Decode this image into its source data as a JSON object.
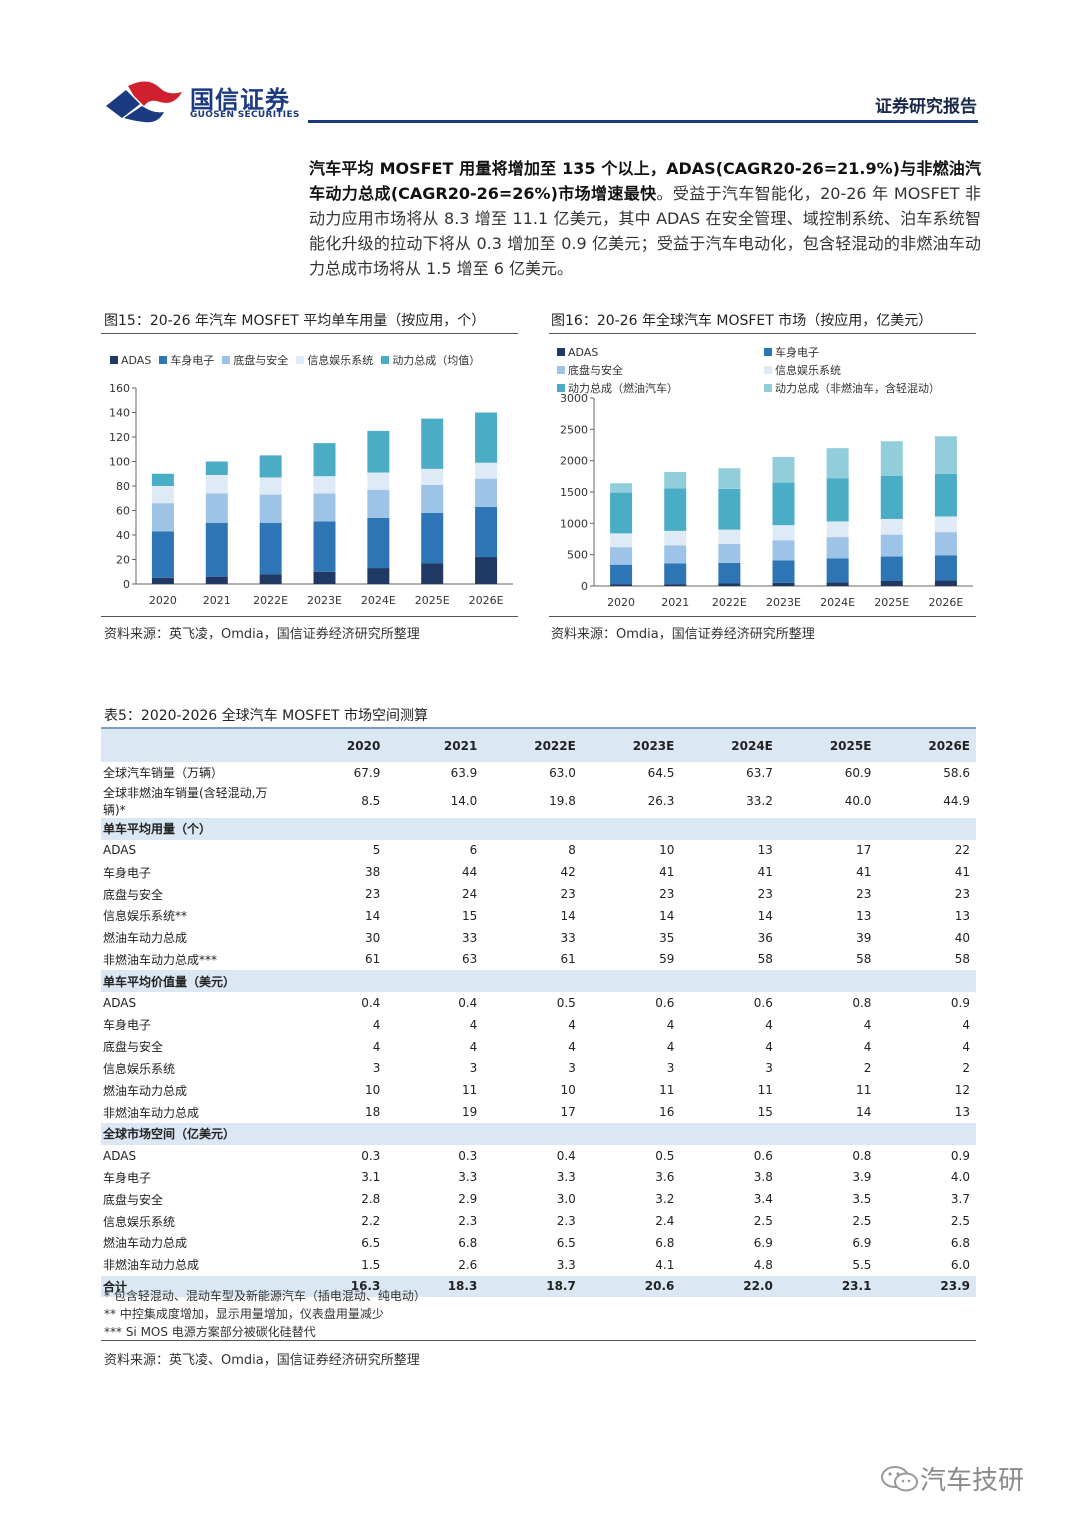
{
  "header": {
    "brand_cn": "国信证券",
    "brand_en": "GUOSEN SECURITIES",
    "report_type": "证券研究报告"
  },
  "paragraph": {
    "bold_lead": "汽车平均 MOSFET 用量将增加至 135 个以上，ADAS(CAGR20-26=21.9%)与非燃油汽车动力总成(CAGR20-26=26%)市场增速最快",
    "body": "。受益于汽车智能化，20-26 年 MOSFET 非动力应用市场将从 8.3 增至 11.1 亿美元，其中 ADAS 在安全管理、域控制系统、泊车系统智能化升级的拉动下将从 0.3 增加至 0.9 亿美元；受益于汽车电动化，包含轻混动的非燃油车动力总成市场将从 1.5 增至 6 亿美元。"
  },
  "fig15": {
    "caption": "图15：20-26 年汽车 MOSFET 平均单车用量（按应用，个）",
    "source": "资料来源：英飞凌，Omdia，国信证券经济研究所整理",
    "legend": [
      "ADAS",
      "车身电子",
      "底盘与安全",
      "信息娱乐系统",
      "动力总成（均值）"
    ]
  },
  "fig16": {
    "caption": "图16：20-26 年全球汽车 MOSFET 市场（按应用，亿美元）",
    "source": "资料来源：Omdia，国信证券经济研究所整理",
    "legend": [
      "ADAS",
      "车身电子",
      "底盘与安全",
      "信息娱乐系统",
      "动力总成（燃油汽车）",
      "动力总成（非燃油车，含轻混动）"
    ]
  },
  "colors": {
    "adas": "#1f3864",
    "body": "#2e75b6",
    "chassis": "#9dc3e6",
    "infotainment": "#deebf7",
    "power_avg": "#4bacc6",
    "power_ice": "#4bacc6",
    "power_nev": "#92cddc",
    "brand": "#1b3a80",
    "logo_red": "#d0202e",
    "table_band": "#dbe8f4"
  },
  "chart_data": [
    {
      "type": "bar",
      "stacked": true,
      "title": "图15：20-26 年汽车 MOSFET 平均单车用量（按应用，个）",
      "categories": [
        "2020",
        "2021",
        "2022E",
        "2023E",
        "2024E",
        "2025E",
        "2026E"
      ],
      "ylim": [
        0,
        160
      ],
      "yticks": [
        0,
        20,
        40,
        60,
        80,
        100,
        120,
        140,
        160
      ],
      "grid": false,
      "legend_position": "top",
      "series": [
        {
          "name": "ADAS",
          "color_key": "adas",
          "values": [
            5,
            6,
            8,
            10,
            13,
            17,
            22
          ]
        },
        {
          "name": "车身电子",
          "color_key": "body",
          "values": [
            38,
            44,
            42,
            41,
            41,
            41,
            41
          ]
        },
        {
          "name": "底盘与安全",
          "color_key": "chassis",
          "values": [
            23,
            24,
            23,
            23,
            23,
            23,
            23
          ]
        },
        {
          "name": "信息娱乐系统",
          "color_key": "infotainment",
          "values": [
            14,
            15,
            14,
            14,
            14,
            13,
            13
          ]
        },
        {
          "name": "动力总成（均值）",
          "color_key": "power_avg",
          "values": [
            10,
            11,
            18,
            27,
            34,
            41,
            41
          ]
        }
      ]
    },
    {
      "type": "bar",
      "stacked": true,
      "title": "图16：20-26 年全球汽车 MOSFET 市场（按应用，亿美元）",
      "categories": [
        "2020",
        "2021",
        "2022E",
        "2023E",
        "2024E",
        "2025E",
        "2026E"
      ],
      "ylim": [
        0,
        3000
      ],
      "yticks": [
        0,
        500,
        1000,
        1500,
        2000,
        2500,
        3000
      ],
      "grid": false,
      "legend_position": "top",
      "series": [
        {
          "name": "ADAS",
          "color_key": "adas",
          "values": [
            30,
            30,
            40,
            50,
            60,
            80,
            90
          ]
        },
        {
          "name": "车身电子",
          "color_key": "body",
          "values": [
            310,
            330,
            330,
            360,
            380,
            390,
            400
          ]
        },
        {
          "name": "底盘与安全",
          "color_key": "chassis",
          "values": [
            280,
            290,
            300,
            320,
            340,
            350,
            370
          ]
        },
        {
          "name": "信息娱乐系统",
          "color_key": "infotainment",
          "values": [
            220,
            230,
            230,
            240,
            250,
            250,
            250
          ]
        },
        {
          "name": "动力总成（燃油汽车）",
          "color_key": "power_ice",
          "values": [
            650,
            680,
            650,
            680,
            690,
            690,
            680
          ]
        },
        {
          "name": "动力总成（非燃油车，含轻混动）",
          "color_key": "power_nev",
          "values": [
            150,
            260,
            330,
            410,
            480,
            550,
            600
          ]
        }
      ]
    }
  ],
  "table": {
    "caption": "表5：2020-2026 全球汽车 MOSFET 市场空间测算",
    "headers": [
      "",
      "2020",
      "2021",
      "2022E",
      "2023E",
      "2024E",
      "2025E",
      "2026E"
    ],
    "rows": [
      {
        "kind": "data",
        "cells": [
          "全球汽车销量（万辆）",
          "67.9",
          "63.9",
          "63.0",
          "64.5",
          "63.7",
          "60.9",
          "58.6"
        ]
      },
      {
        "kind": "data",
        "cells": [
          "全球非燃油车销量(含轻混动,万辆)*",
          "8.5",
          "14.0",
          "19.8",
          "26.3",
          "33.2",
          "40.0",
          "44.9"
        ]
      },
      {
        "kind": "sec",
        "cells": [
          "单车平均用量（个）",
          "",
          "",
          "",
          "",
          "",
          "",
          ""
        ]
      },
      {
        "kind": "data",
        "cells": [
          "ADAS",
          "5",
          "6",
          "8",
          "10",
          "13",
          "17",
          "22"
        ]
      },
      {
        "kind": "data",
        "cells": [
          "车身电子",
          "38",
          "44",
          "42",
          "41",
          "41",
          "41",
          "41"
        ]
      },
      {
        "kind": "data",
        "cells": [
          "底盘与安全",
          "23",
          "24",
          "23",
          "23",
          "23",
          "23",
          "23"
        ]
      },
      {
        "kind": "data",
        "cells": [
          "信息娱乐系统**",
          "14",
          "15",
          "14",
          "14",
          "14",
          "13",
          "13"
        ]
      },
      {
        "kind": "data",
        "cells": [
          "燃油车动力总成",
          "30",
          "33",
          "33",
          "35",
          "36",
          "39",
          "40"
        ]
      },
      {
        "kind": "data",
        "cells": [
          "非燃油车动力总成***",
          "61",
          "63",
          "61",
          "59",
          "58",
          "58",
          "58"
        ]
      },
      {
        "kind": "sec",
        "cells": [
          "单车平均价值量（美元）",
          "",
          "",
          "",
          "",
          "",
          "",
          ""
        ]
      },
      {
        "kind": "data",
        "cells": [
          "ADAS",
          "0.4",
          "0.4",
          "0.5",
          "0.6",
          "0.6",
          "0.8",
          "0.9"
        ]
      },
      {
        "kind": "data",
        "cells": [
          "车身电子",
          "4",
          "4",
          "4",
          "4",
          "4",
          "4",
          "4"
        ]
      },
      {
        "kind": "data",
        "cells": [
          "底盘与安全",
          "4",
          "4",
          "4",
          "4",
          "4",
          "4",
          "4"
        ]
      },
      {
        "kind": "data",
        "cells": [
          "信息娱乐系统",
          "3",
          "3",
          "3",
          "3",
          "3",
          "2",
          "2"
        ]
      },
      {
        "kind": "data",
        "cells": [
          "燃油车动力总成",
          "10",
          "11",
          "10",
          "11",
          "11",
          "11",
          "12"
        ]
      },
      {
        "kind": "data",
        "cells": [
          "非燃油车动力总成",
          "18",
          "19",
          "17",
          "16",
          "15",
          "14",
          "13"
        ]
      },
      {
        "kind": "sec",
        "cells": [
          "全球市场空间（亿美元）",
          "",
          "",
          "",
          "",
          "",
          "",
          ""
        ]
      },
      {
        "kind": "data",
        "cells": [
          "ADAS",
          "0.3",
          "0.3",
          "0.4",
          "0.5",
          "0.6",
          "0.8",
          "0.9"
        ]
      },
      {
        "kind": "data",
        "cells": [
          "车身电子",
          "3.1",
          "3.3",
          "3.3",
          "3.6",
          "3.8",
          "3.9",
          "4.0"
        ]
      },
      {
        "kind": "data",
        "cells": [
          "底盘与安全",
          "2.8",
          "2.9",
          "3.0",
          "3.2",
          "3.4",
          "3.5",
          "3.7"
        ]
      },
      {
        "kind": "data",
        "cells": [
          "信息娱乐系统",
          "2.2",
          "2.3",
          "2.3",
          "2.4",
          "2.5",
          "2.5",
          "2.5"
        ]
      },
      {
        "kind": "data",
        "cells": [
          "燃油车动力总成",
          "6.5",
          "6.8",
          "6.5",
          "6.8",
          "6.9",
          "6.9",
          "6.8"
        ]
      },
      {
        "kind": "data",
        "cells": [
          "非燃油车动力总成",
          "1.5",
          "2.6",
          "3.3",
          "4.1",
          "4.8",
          "5.5",
          "6.0"
        ]
      },
      {
        "kind": "total",
        "cells": [
          "合计",
          "16.3",
          "18.3",
          "18.7",
          "20.6",
          "22.0",
          "23.1",
          "23.9"
        ]
      }
    ],
    "notes": [
      "*   包含轻混动、混动车型及新能源汽车（插电混动、纯电动）",
      "**  中控集成度增加，显示用量增加，仪表盘用量减少",
      "*** Si MOS 电源方案部分被碳化硅替代"
    ],
    "source": "资料来源：英飞凌、Omdia，国信证券经济研究所整理"
  },
  "watermark": "汽车技研"
}
